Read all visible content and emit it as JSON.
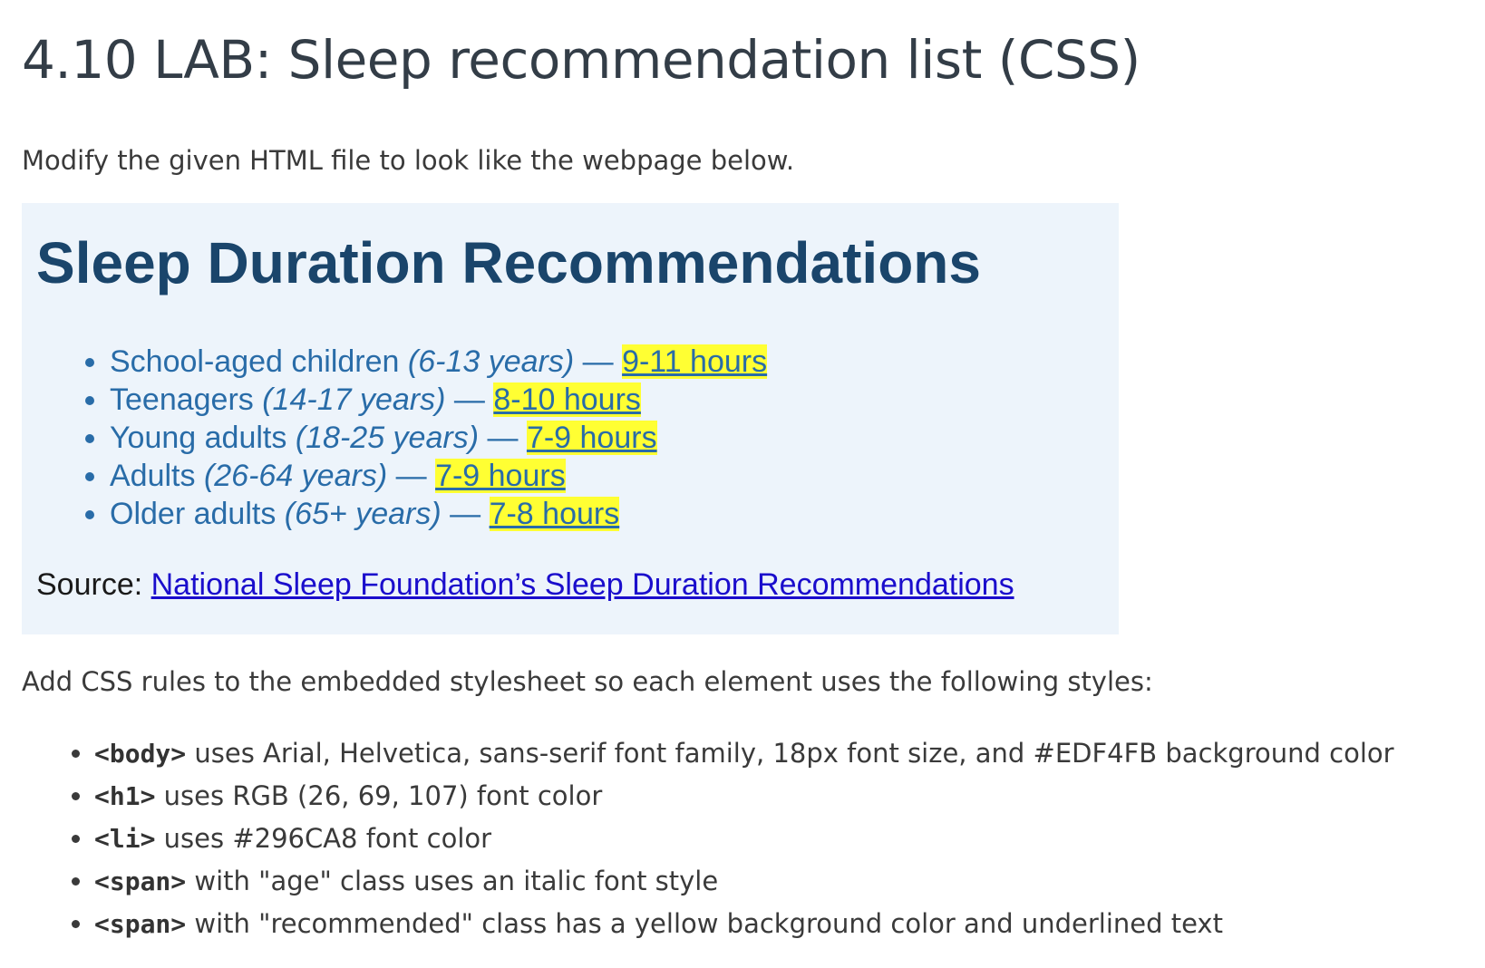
{
  "lab": {
    "title": "4.10 LAB: Sleep recommendation list (CSS)",
    "intro": "Modify the given HTML file to look like the webpage below.",
    "instructions": "Add CSS rules to the embedded stylesheet so each element uses the following styles:"
  },
  "example": {
    "heading": "Sleep Duration Recommendations",
    "background_color": "#EDF4FB",
    "heading_color": "#1A456B",
    "list_color": "#296CA8",
    "highlight_color": "#FFFF33",
    "items": [
      {
        "group": "School-aged children ",
        "age": "(6-13 years)",
        "sep": " — ",
        "hours": "9-11 hours"
      },
      {
        "group": "Teenagers ",
        "age": "(14-17 years)",
        "sep": " — ",
        "hours": "8-10 hours"
      },
      {
        "group": "Young adults ",
        "age": "(18-25 years)",
        "sep": " — ",
        "hours": "7-9 hours"
      },
      {
        "group": "Adults ",
        "age": "(26-64 years)",
        "sep": " — ",
        "hours": "7-9 hours"
      },
      {
        "group": "Older adults ",
        "age": "(65+ years)",
        "sep": " — ",
        "hours": "7-8 hours"
      }
    ],
    "source_label": "Source: ",
    "source_link": "National Sleep Foundation’s Sleep Duration Recommendations"
  },
  "rules": [
    {
      "tag": "<body>",
      "text": " uses Arial, Helvetica, sans-serif font family, 18px font size, and #EDF4FB background color"
    },
    {
      "tag": "<h1>",
      "text": " uses RGB (26, 69, 107) font color"
    },
    {
      "tag": "<li>",
      "text": " uses #296CA8 font color"
    },
    {
      "tag": "<span>",
      "text": " with \"age\" class uses an italic font style"
    },
    {
      "tag": "<span>",
      "text": " with \"recommended\" class has a yellow background color and underlined text"
    }
  ]
}
